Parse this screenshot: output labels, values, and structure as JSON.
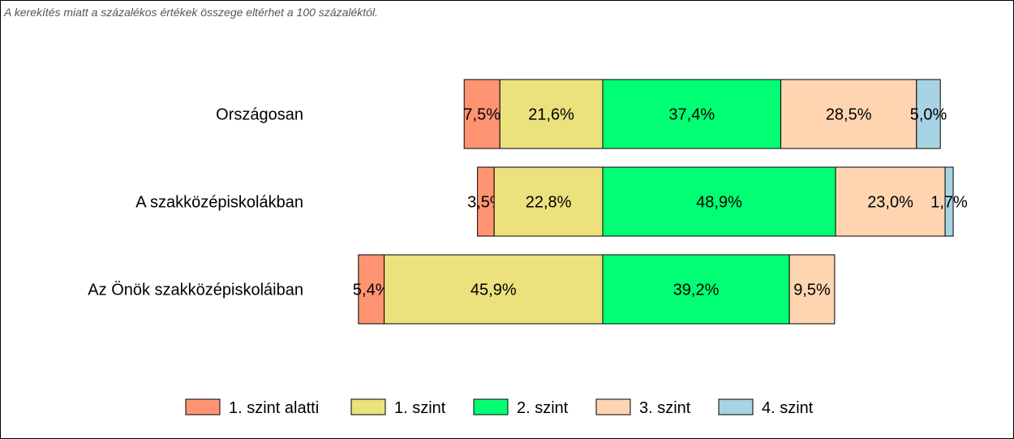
{
  "note": "A kerekítés miatt a  százalékos értékek összege eltérhet a 100 százaléktól.",
  "chart_data": {
    "type": "bar",
    "orientation": "horizontal",
    "stacked": "diverging",
    "categories": [
      "Országosan",
      "A szakközépiskolákban",
      "Az Önök szakközépiskoláiban"
    ],
    "series": [
      {
        "name": "1. szint alatti",
        "color": "#FF9473",
        "values": [
          7.5,
          3.5,
          5.4
        ],
        "labels": [
          "7,5%",
          "3,5%",
          "5,4%"
        ]
      },
      {
        "name": "1. szint",
        "color": "#EBE17D",
        "values": [
          21.6,
          22.8,
          45.9
        ],
        "labels": [
          "21,6%",
          "22,8%",
          "45,9%"
        ]
      },
      {
        "name": "2. szint",
        "color": "#00FF73",
        "values": [
          37.4,
          48.9,
          39.2
        ],
        "labels": [
          "37,4%",
          "48,9%",
          "39,2%"
        ]
      },
      {
        "name": "3. szint",
        "color": "#FFD5B1",
        "values": [
          28.5,
          23.0,
          9.5
        ],
        "labels": [
          "28,5%",
          "23,0%",
          "9,5%"
        ]
      },
      {
        "name": "4. szint",
        "color": "#A8D3E3",
        "values": [
          5.0,
          1.7,
          0
        ],
        "labels": [
          "5,0%",
          "1,7%",
          ""
        ]
      }
    ],
    "legend": "bottom",
    "grid": false
  }
}
